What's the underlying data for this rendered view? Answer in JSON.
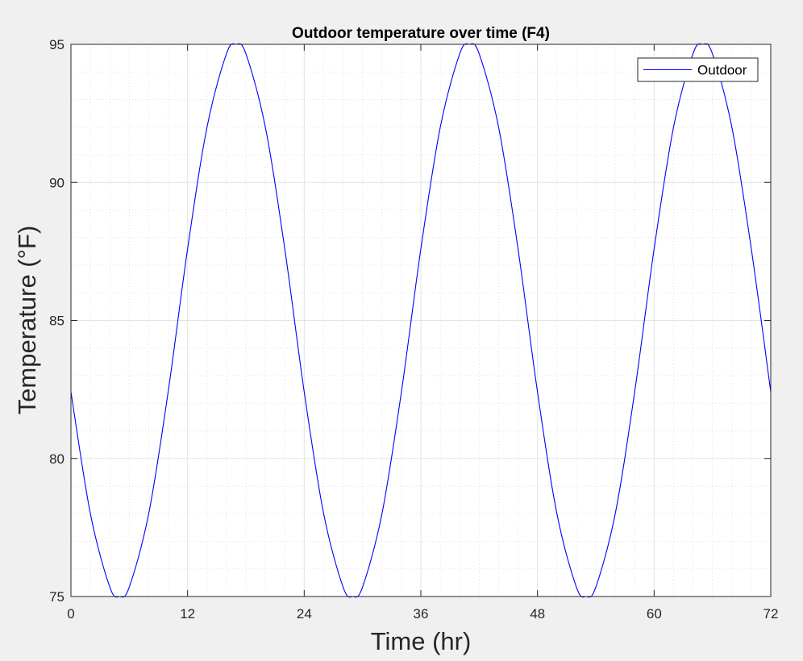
{
  "chart_data": {
    "type": "line",
    "title": "Outdoor temperature over time (F4)",
    "xlabel": "Time (hr)",
    "ylabel": "Temperature (°F)",
    "xlim": [
      0,
      72
    ],
    "ylim": [
      75,
      95
    ],
    "xticks": [
      0,
      12,
      24,
      36,
      48,
      60,
      72
    ],
    "xtick_labels": [
      "0",
      "12",
      "24",
      "36",
      "48",
      "60",
      "72"
    ],
    "yticks": [
      75,
      80,
      85,
      90,
      95
    ],
    "ytick_labels": [
      "75",
      "80",
      "85",
      "90",
      "95"
    ],
    "grid": true,
    "minor_grid": true,
    "legend": {
      "location": "top-right",
      "entries": [
        "Outdoor"
      ]
    },
    "series": [
      {
        "name": "Outdoor",
        "color": "#0000ff",
        "x": [
          0,
          2,
          4,
          5,
          6,
          8,
          10,
          12,
          14,
          16,
          17,
          18,
          20,
          22,
          24,
          26,
          28,
          29,
          30,
          32,
          34,
          36,
          38,
          40,
          41,
          42,
          44,
          46,
          48,
          50,
          52,
          53,
          54,
          56,
          58,
          60,
          62,
          64,
          65,
          66,
          68,
          70,
          72
        ],
        "values": [
          82.41,
          78.0,
          75.34,
          75.0,
          75.34,
          78.0,
          82.41,
          87.59,
          92.0,
          94.66,
          95.0,
          94.66,
          92.0,
          87.59,
          82.41,
          78.0,
          75.34,
          75.0,
          75.34,
          78.0,
          82.41,
          87.59,
          92.0,
          94.66,
          95.0,
          94.66,
          92.0,
          87.59,
          82.41,
          78.0,
          75.34,
          75.0,
          75.34,
          78.0,
          82.41,
          87.59,
          92.0,
          94.66,
          95.0,
          94.66,
          92.0,
          87.59,
          82.41
        ]
      }
    ]
  }
}
